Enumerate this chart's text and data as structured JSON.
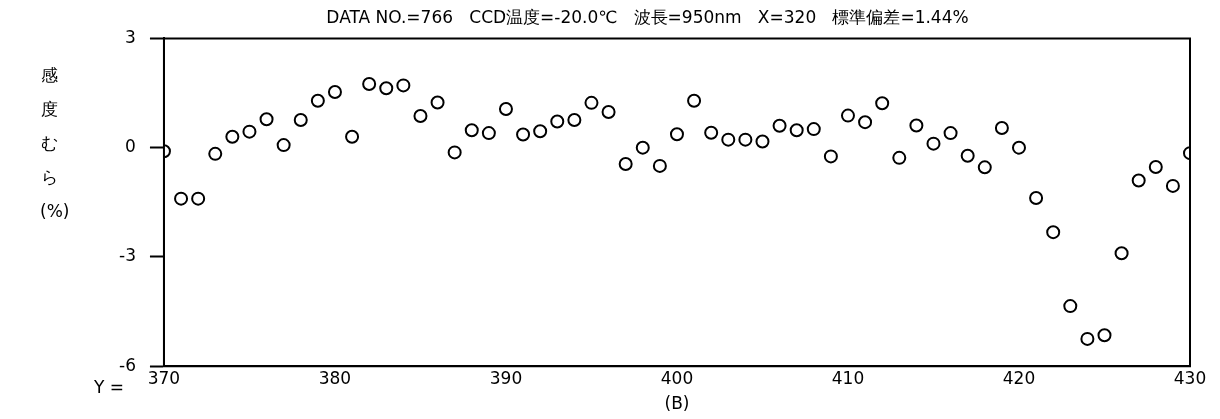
{
  "chart_data": {
    "type": "scatter",
    "title": "DATA NO.=766   CCD温度=-20.0℃   波長=950nm   X=320   標準偏差=1.44%",
    "ylabel": "感度むら(%)",
    "xlabel": "(B)",
    "annotations": [
      "Y ="
    ],
    "x": [
      370,
      371,
      372,
      373,
      374,
      375,
      376,
      377,
      378,
      379,
      380,
      381,
      382,
      383,
      384,
      385,
      386,
      387,
      388,
      389,
      390,
      391,
      392,
      393,
      394,
      395,
      396,
      397,
      398,
      399,
      400,
      401,
      402,
      403,
      404,
      405,
      406,
      407,
      408,
      409,
      410,
      411,
      412,
      413,
      414,
      415,
      416,
      417,
      418,
      419,
      420,
      421,
      422,
      423,
      424,
      425,
      426,
      427,
      428,
      429,
      430
    ],
    "values": [
      -0.1,
      -1.4,
      -1.4,
      -0.17,
      0.3,
      0.44,
      0.78,
      0.07,
      0.76,
      1.29,
      1.53,
      0.3,
      1.75,
      1.63,
      1.71,
      0.87,
      1.24,
      -0.13,
      0.48,
      0.4,
      1.06,
      0.36,
      0.45,
      0.72,
      0.76,
      1.23,
      0.98,
      -0.45,
      0,
      -0.5,
      0.37,
      1.29,
      0.41,
      0.22,
      0.22,
      0.17,
      0.6,
      0.48,
      0.51,
      -0.24,
      0.88,
      0.7,
      1.22,
      -0.28,
      0.61,
      0.11,
      0.4,
      -0.22,
      -0.54,
      0.54,
      0,
      -1.38,
      -2.32,
      -4.35,
      -5.25,
      -5.15,
      -2.9,
      -0.9,
      -0.53,
      -1.05,
      -0.15
    ],
    "color": "#000000",
    "marker": "circle",
    "xlim": [
      370,
      430
    ],
    "xticks": [
      370,
      380,
      390,
      400,
      410,
      420,
      430
    ],
    "ylim": [
      -6,
      3
    ],
    "yticks": [
      3,
      0,
      -3,
      -6
    ],
    "grid": false,
    "legend": false
  }
}
